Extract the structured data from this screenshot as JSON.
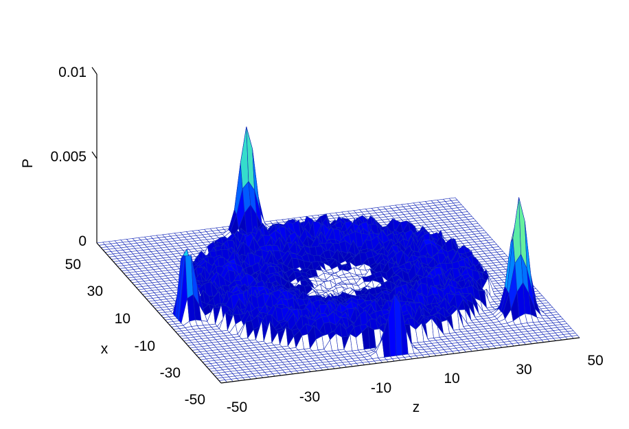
{
  "chart_data": {
    "type": "surface",
    "title": "",
    "xlabel": "z",
    "ylabel": "x",
    "zlabel": "P",
    "xlim": [
      -50,
      50
    ],
    "ylim": [
      -50,
      50
    ],
    "zlim": [
      0,
      0.01
    ],
    "x_ticks": [
      "-50",
      "-30",
      "-10",
      "10",
      "30",
      "50"
    ],
    "y_ticks": [
      "-50",
      "-30",
      "-10",
      "10",
      "30",
      "50"
    ],
    "z_ticks": [
      "0",
      "0.005",
      "0.01"
    ],
    "grid_points": 61,
    "colormap": "jet",
    "mesh_color": "#1428b8",
    "background_level": 0.0012,
    "ring_radius": 28,
    "peaks": [
      {
        "x": 40,
        "y": -30,
        "height": 0.0077
      },
      {
        "x": -10,
        "y": 45,
        "height": 0.0068
      },
      {
        "x": -44,
        "y": -5,
        "height": 0.0059
      },
      {
        "x": 0,
        "y": -46,
        "height": 0.0052
      }
    ]
  }
}
